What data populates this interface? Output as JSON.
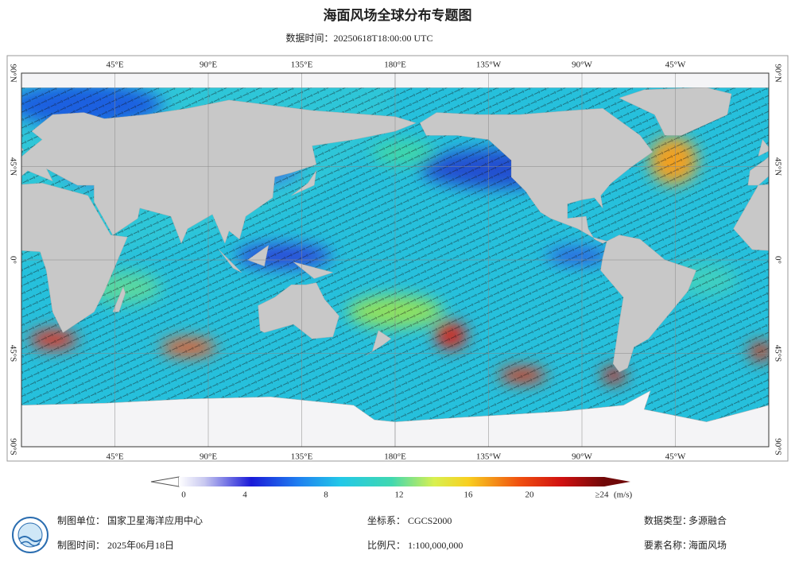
{
  "header": {
    "title": "海面风场全球分布专题图",
    "subtitle": "数据时间：20250618T18:00:00 UTC"
  },
  "map": {
    "longitude_labels": [
      "45°E",
      "90°E",
      "135°E",
      "180°E",
      "135°W",
      "90°W",
      "45°W"
    ],
    "latitude_labels": [
      "90°N",
      "45°N",
      "0°",
      "45°S",
      "90°S"
    ]
  },
  "legend": {
    "labels": [
      "0",
      "4",
      "8",
      "12",
      "16",
      "20",
      "≥24"
    ],
    "unit": "(m/s)"
  },
  "footer": {
    "producer": {
      "label": "制图单位：",
      "value": "国家卫星海洋应用中心"
    },
    "crs": {
      "label": "坐标系：",
      "value": "CGCS2000"
    },
    "data_type": {
      "label": "数据类型：",
      "value": "多源融合"
    },
    "date": {
      "label": "制图时间：",
      "value": "2025年06月18日"
    },
    "scale": {
      "label": "比例尺：",
      "value": "1:100,000,000"
    },
    "element": {
      "label": "要素名称：",
      "value": "海面风场"
    }
  }
}
